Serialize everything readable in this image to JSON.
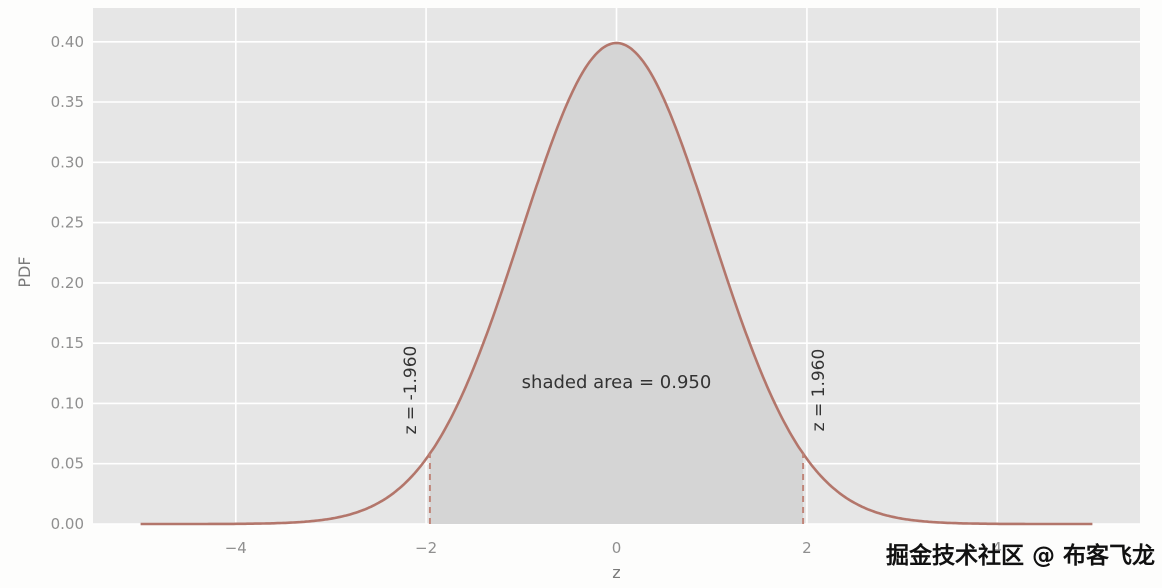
{
  "chart_data": {
    "type": "area",
    "title": "",
    "distribution": "standard_normal_pdf",
    "peak_pdf": 0.3989,
    "xlabel": "z",
    "ylabel": "PDF",
    "xlim": [
      -5.5,
      5.5
    ],
    "ylim": [
      0,
      0.428
    ],
    "curve_x_range": [
      -5,
      5
    ],
    "grid": true,
    "legend": false,
    "x_ticks": {
      "values": [
        -4,
        -2,
        0,
        2,
        4
      ],
      "labels": [
        "−4",
        "−2",
        "0",
        "2",
        "4"
      ]
    },
    "y_ticks": {
      "values": [
        0,
        0.05,
        0.1,
        0.15,
        0.2,
        0.25,
        0.3,
        0.35,
        0.4
      ],
      "labels": [
        "0.00",
        "0.05",
        "0.10",
        "0.15",
        "0.20",
        "0.25",
        "0.30",
        "0.35",
        "0.40"
      ]
    },
    "shaded_region": {
      "from": -1.96,
      "to": 1.96,
      "area": 0.95,
      "label": "shaded area = 0.950"
    },
    "critical_lines": [
      {
        "x": -1.96,
        "label": "z = -1.960"
      },
      {
        "x": 1.96,
        "label": "z = 1.960"
      }
    ],
    "colors": {
      "curve": "#b3766b",
      "dashed": "#c08579",
      "panel": "#e6e6e6",
      "shade": "#d5d5d5",
      "grid": "#ffffff",
      "tick_text": "#8f8f8f",
      "title_text": "#7a7a7a",
      "annotation_text": "#333333",
      "watermark_text": "#111111"
    }
  },
  "watermark": {
    "text": "掘金技术社区 @ 布客飞龙"
  }
}
